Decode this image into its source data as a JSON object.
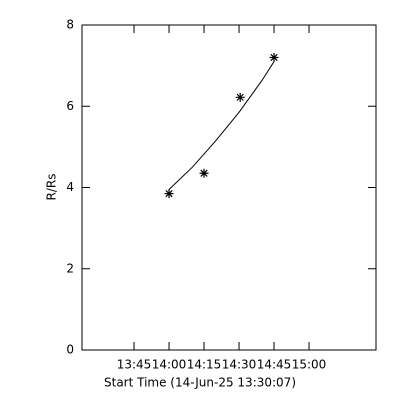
{
  "chart_data": {
    "type": "scatter",
    "x_label": "Start Time (14-Jun-25 13:30:07)",
    "y_label": "R/Rs",
    "xlim": [
      802.7,
      928.7
    ],
    "ylim": [
      0,
      8
    ],
    "xticks": [
      {
        "value": 825,
        "label": "13:45"
      },
      {
        "value": 840,
        "label": "14:00"
      },
      {
        "value": 855,
        "label": "14:15"
      },
      {
        "value": 870,
        "label": "14:30"
      },
      {
        "value": 885,
        "label": "14:45"
      },
      {
        "value": 900,
        "label": "15:00"
      }
    ],
    "yticks": [
      0,
      2,
      4,
      6,
      8
    ],
    "color": "#000000",
    "series": [
      {
        "kind": "points",
        "x": [
          840,
          855,
          870.5,
          885
        ],
        "values": [
          3.85,
          4.35,
          6.22,
          7.2
        ]
      },
      {
        "kind": "fit",
        "x": [
          840,
          850,
          860,
          870,
          880,
          885
        ],
        "values": [
          3.95,
          4.5,
          5.15,
          5.85,
          6.65,
          7.1
        ]
      }
    ]
  }
}
